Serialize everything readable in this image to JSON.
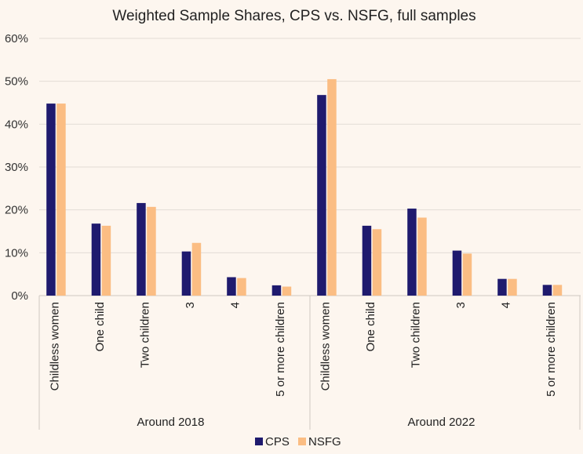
{
  "chart_data": {
    "type": "bar",
    "title": "Weighted Sample Shares, CPS vs. NSFG, full samples",
    "xlabel": "",
    "ylabel": "",
    "ylim": [
      0,
      60
    ],
    "yticks": [
      "0%",
      "10%",
      "20%",
      "30%",
      "40%",
      "50%",
      "60%"
    ],
    "grid": true,
    "legend_position": "bottom",
    "groups": [
      {
        "label": "Around 2018",
        "categories": [
          "Childless women",
          "One child",
          "Two children",
          "3",
          "4",
          "5 or more children"
        ],
        "series": [
          {
            "name": "CPS",
            "values": [
              44.8,
              16.8,
              21.6,
              10.3,
              4.3,
              2.4
            ]
          },
          {
            "name": "NSFG",
            "values": [
              44.8,
              16.3,
              20.7,
              12.3,
              4.1,
              2.1
            ]
          }
        ]
      },
      {
        "label": "Around 2022",
        "categories": [
          "Childless women",
          "One child",
          "Two children",
          "3",
          "4",
          "5 or more children"
        ],
        "series": [
          {
            "name": "CPS",
            "values": [
              46.8,
              16.3,
              20.3,
              10.5,
              3.9,
              2.5
            ]
          },
          {
            "name": "NSFG",
            "values": [
              50.5,
              15.5,
              18.2,
              9.8,
              3.9,
              2.5
            ]
          }
        ]
      }
    ],
    "legend": [
      "CPS",
      "NSFG"
    ],
    "colors": {
      "CPS": "#1f1a6e",
      "NSFG": "#fbbd83"
    }
  }
}
